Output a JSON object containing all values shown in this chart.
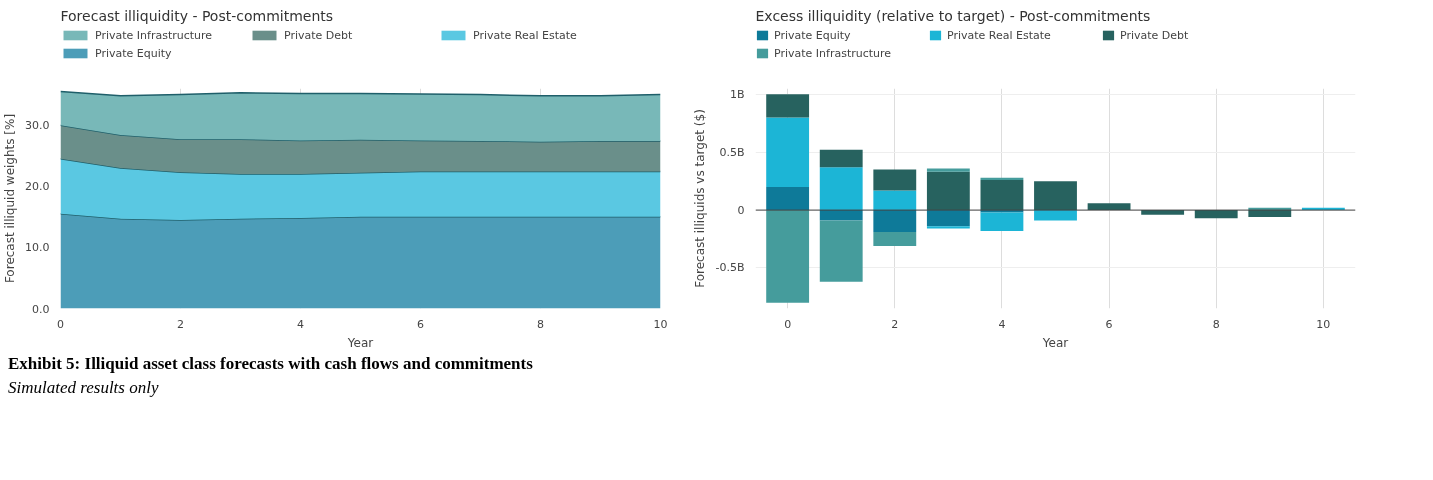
{
  "chart_data": [
    {
      "type": "area",
      "stacked": true,
      "title": "Forecast illiquidity - Post-commitments",
      "xlabel": "Year",
      "ylabel": "Forecast illiquid weights [%]",
      "x": [
        0,
        1,
        2,
        3,
        4,
        5,
        6,
        7,
        8,
        9,
        10
      ],
      "series": [
        {
          "name": "Private Equity",
          "color": "#4c9db8",
          "values": [
            15.5,
            14.7,
            14.5,
            14.7,
            14.8,
            15.0,
            15.0,
            15.0,
            15.0,
            15.0,
            15.0
          ]
        },
        {
          "name": "Private Real Estate",
          "color": "#5ac8e2",
          "values": [
            9.0,
            8.3,
            7.8,
            7.3,
            7.2,
            7.2,
            7.4,
            7.4,
            7.4,
            7.4,
            7.4
          ]
        },
        {
          "name": "Private Debt",
          "color": "#6a8f8a",
          "values": [
            5.5,
            5.4,
            5.4,
            5.7,
            5.5,
            5.4,
            5.1,
            5.0,
            4.9,
            5.0,
            5.0
          ]
        },
        {
          "name": "Private Infrastructure",
          "color": "#78b8b8",
          "values": [
            5.5,
            6.4,
            7.3,
            7.6,
            7.7,
            7.6,
            7.6,
            7.6,
            7.5,
            7.4,
            7.6
          ]
        }
      ],
      "xlim": [
        0,
        10
      ],
      "ylim": [
        0,
        36
      ],
      "xticks": [
        0,
        2,
        4,
        6,
        8,
        10
      ],
      "yticks": [
        {
          "value": 0,
          "label": "0.0"
        },
        {
          "value": 10,
          "label": "10.0"
        },
        {
          "value": 20,
          "label": "20.0"
        },
        {
          "value": 30,
          "label": "30.0"
        }
      ],
      "grid": "x",
      "legend": "top",
      "annotations": [
        "Exhibit 5: Illiquid asset class forecasts with cash flows and commitments",
        "Simulated results only"
      ]
    },
    {
      "type": "bar",
      "stacked": true,
      "title": "Excess illiquidity (relative to target) - Post-commitments",
      "xlabel": "Year",
      "ylabel": "Forecast illiquids vs target ($)",
      "x": [
        0,
        1,
        2,
        3,
        4,
        5,
        6,
        7,
        8,
        9,
        10
      ],
      "series": [
        {
          "name": "Private Equity",
          "color": "#0e7a99",
          "values": [
            0.2,
            -0.09,
            -0.19,
            -0.14,
            -0.02,
            0,
            0,
            0,
            0,
            0,
            0
          ]
        },
        {
          "name": "Private Real Estate",
          "color": "#1cb5d6",
          "values": [
            0.6,
            0.37,
            0.17,
            -0.02,
            -0.16,
            -0.09,
            0,
            0,
            0,
            0,
            0.02
          ]
        },
        {
          "name": "Private Debt",
          "color": "#27625f",
          "values": [
            0.2,
            0.15,
            0.18,
            0.33,
            0.26,
            0.25,
            0.06,
            -0.04,
            -0.07,
            -0.06,
            0
          ]
        },
        {
          "name": "Private Infrastructure",
          "color": "#459c9c",
          "values": [
            -0.8,
            -0.53,
            -0.12,
            0.03,
            0.02,
            0,
            0,
            0,
            0,
            0.02,
            0
          ]
        }
      ],
      "xlim": [
        -0.6,
        10.6
      ],
      "ylim": [
        -0.85,
        1.05
      ],
      "xticks": [
        0,
        2,
        4,
        6,
        8,
        10
      ],
      "yticks": [
        {
          "value": -0.5,
          "label": "-0.5B"
        },
        {
          "value": 0,
          "label": "0"
        },
        {
          "value": 0.5,
          "label": "0.5B"
        },
        {
          "value": 1,
          "label": "1B"
        }
      ],
      "ref_lines": [
        {
          "axis": "y",
          "value": 0,
          "color": "#444444"
        }
      ],
      "grid": true,
      "legend": "top"
    }
  ]
}
